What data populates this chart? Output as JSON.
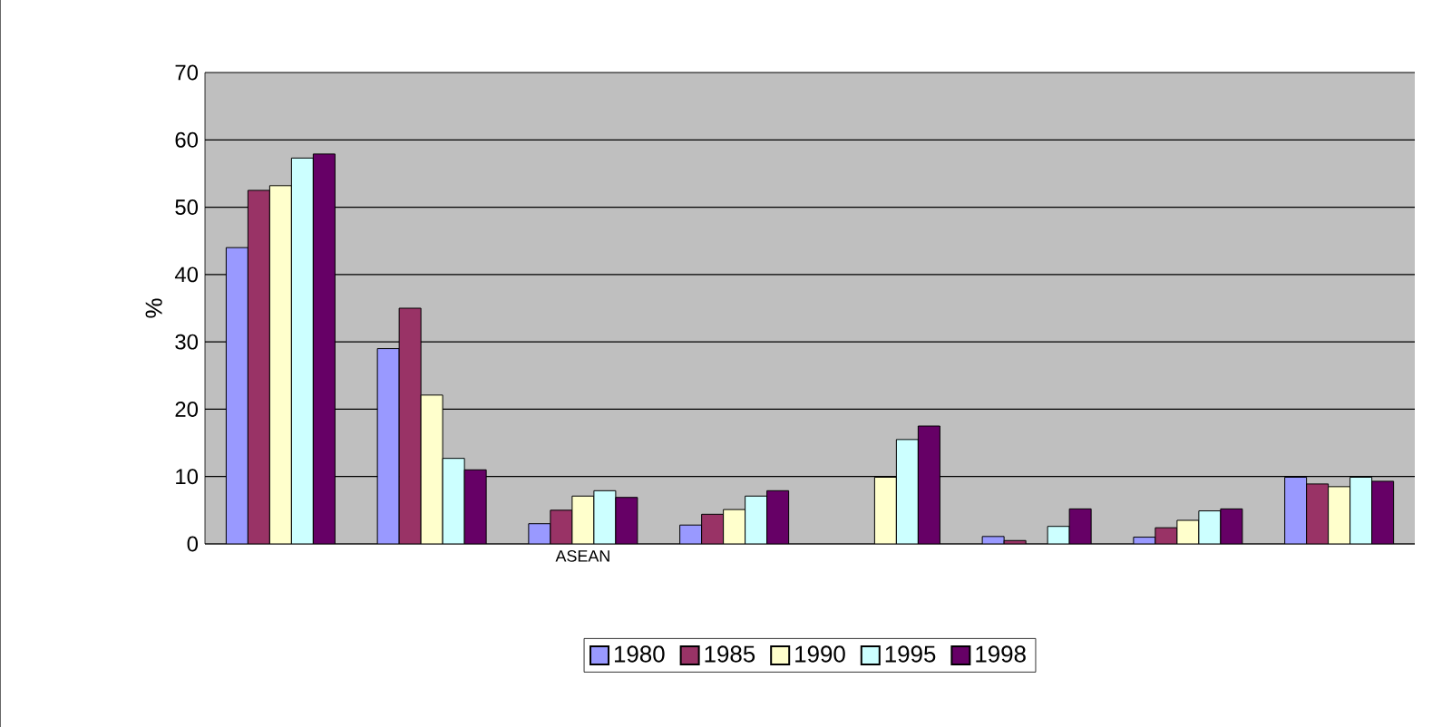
{
  "chart_data": {
    "type": "bar",
    "ylabel": "%",
    "categories": [
      null,
      null,
      "ASEAN",
      null,
      null,
      null,
      null,
      null
    ],
    "series": [
      {
        "name": "1980",
        "color": "#9999ff",
        "values": [
          44,
          29,
          3,
          2.8,
          null,
          1.1,
          1.0,
          9.9
        ]
      },
      {
        "name": "1985",
        "color": "#993366",
        "values": [
          52.5,
          35,
          5,
          4.4,
          null,
          0.5,
          2.4,
          8.9
        ]
      },
      {
        "name": "1990",
        "color": "#ffffcc",
        "values": [
          53.2,
          22.1,
          7.1,
          5.1,
          9.9,
          null,
          3.5,
          8.5
        ]
      },
      {
        "name": "1995",
        "color": "#ccffff",
        "values": [
          57.3,
          12.7,
          7.9,
          7.1,
          15.5,
          2.6,
          4.9,
          9.9
        ]
      },
      {
        "name": "1998",
        "color": "#660066",
        "values": [
          57.9,
          11.0,
          6.9,
          7.9,
          17.5,
          5.2,
          5.2,
          9.3
        ]
      }
    ],
    "ylim": [
      0,
      70
    ],
    "yticks": [
      0,
      10,
      20,
      30,
      40,
      50,
      60,
      70
    ],
    "grid": "y",
    "legend": "bottom"
  }
}
